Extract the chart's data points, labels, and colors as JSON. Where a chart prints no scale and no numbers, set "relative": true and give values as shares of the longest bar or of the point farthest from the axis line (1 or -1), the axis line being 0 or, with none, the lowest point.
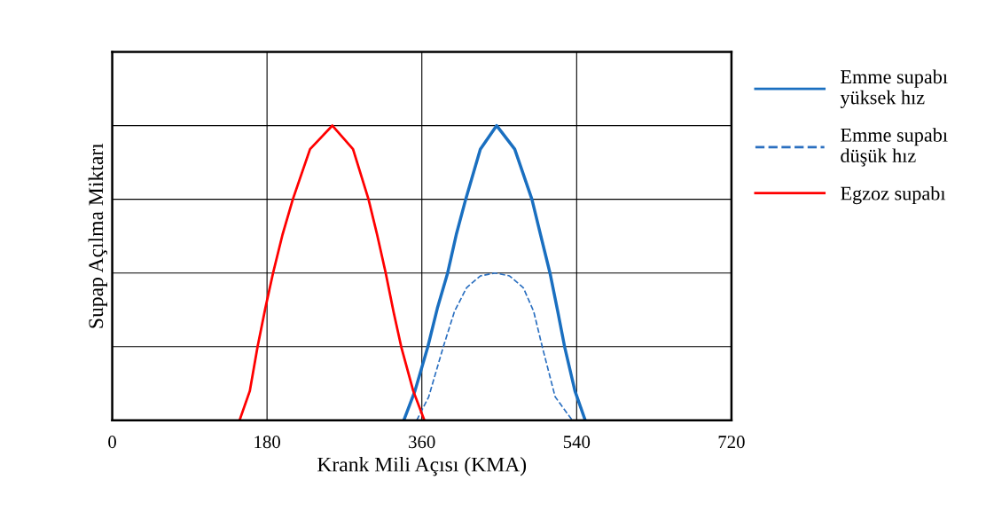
{
  "chart_data": {
    "type": "line",
    "relative": true,
    "xlabel": "Krank Mili Açısı (KMA)",
    "ylabel": "Supap Açılma Miktarı",
    "xlim": [
      0,
      720
    ],
    "xticks": [
      0,
      180,
      360,
      540,
      720
    ],
    "tick_labels": "x",
    "grid": true,
    "legend": "right",
    "marker": "none",
    "series": [
      {
        "name": "Emme supabı\nyüksek hız",
        "color": "#1a6fc0",
        "line_style": "solid",
        "x": [
          339,
          352,
          367,
          378,
          390,
          400,
          411,
          428,
          447,
          468,
          488,
          498,
          509,
          518,
          526,
          538,
          550
        ],
        "values": [
          0,
          0.1,
          0.25,
          0.38,
          0.5,
          0.63,
          0.75,
          0.92,
          1,
          0.92,
          0.75,
          0.63,
          0.5,
          0.37,
          0.25,
          0.1,
          0
        ]
      },
      {
        "name": "Emme supabı\ndüşük hız",
        "color": "#2a6fc0",
        "line_style": "dashed",
        "x": [
          354,
          368,
          385,
          398,
          412,
          428,
          445,
          462,
          478,
          490,
          500,
          515,
          535
        ],
        "values": [
          0,
          0.08,
          0.25,
          0.37,
          0.45,
          0.49,
          0.5,
          0.49,
          0.45,
          0.37,
          0.25,
          0.08,
          0
        ]
      },
      {
        "name": "Egzoz supabı",
        "color": "#ff0000",
        "line_style": "solid",
        "x": [
          148,
          160,
          169,
          178,
          187,
          198,
          210,
          230,
          256,
          280,
          298,
          308,
          318,
          327,
          336,
          350,
          363
        ],
        "values": [
          0,
          0.1,
          0.25,
          0.38,
          0.5,
          0.63,
          0.75,
          0.92,
          1,
          0.92,
          0.75,
          0.63,
          0.5,
          0.37,
          0.25,
          0.1,
          0
        ]
      }
    ]
  }
}
